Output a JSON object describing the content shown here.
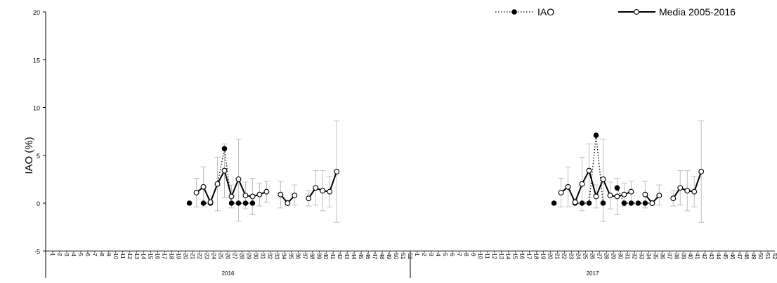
{
  "chart_data": {
    "type": "line",
    "ylabel": "IAO (%)",
    "xlabel": "",
    "ylim": [
      -5,
      20
    ],
    "yticks": [
      -5,
      0,
      5,
      10,
      15,
      20
    ],
    "grid": false,
    "legend_position": "top-right",
    "week_labels": [
      "1",
      "2",
      "3",
      "4",
      "5",
      "6",
      "7",
      "8",
      "9",
      "10",
      "11",
      "12",
      "13",
      "14",
      "15",
      "16",
      "17",
      "18",
      "19",
      "20",
      "21",
      "22",
      "23",
      "24",
      "25",
      "26",
      "27",
      "28",
      "29",
      "30",
      "31",
      "32",
      "33",
      "34",
      "35",
      "36",
      "37",
      "38",
      "39",
      "40",
      "41",
      "42",
      "43",
      "44",
      "45",
      "46",
      "47",
      "48",
      "49",
      "50",
      "51",
      "52"
    ],
    "years": [
      {
        "label": "2016",
        "weeks": 52,
        "iao": [
          {
            "w": 21,
            "v": 0
          },
          {
            "w": 23,
            "v": 0
          },
          {
            "w": 24,
            "v": 0
          },
          {
            "w": 25,
            "v": 2
          },
          {
            "w": 26,
            "v": 5.7
          },
          {
            "w": 27,
            "v": 0
          },
          {
            "w": 28,
            "v": 0
          },
          {
            "w": 29,
            "v": 0
          },
          {
            "w": 30,
            "v": 0
          }
        ],
        "media_segments": [
          [
            {
              "w": 22,
              "v": 1.1,
              "lo": -0.4,
              "hi": 2.6
            },
            {
              "w": 23,
              "v": 1.7,
              "lo": -0.4,
              "hi": 3.8
            },
            {
              "w": 24,
              "v": 0.1,
              "lo": -0.1,
              "hi": 0.3
            },
            {
              "w": 25,
              "v": 2.0,
              "lo": -0.8,
              "hi": 4.8
            },
            {
              "w": 26,
              "v": 3.4,
              "lo": 0.6,
              "hi": 6.2
            },
            {
              "w": 27,
              "v": 0.7,
              "lo": -0.5,
              "hi": 1.9
            },
            {
              "w": 28,
              "v": 2.5,
              "lo": -1.9,
              "hi": 6.7
            },
            {
              "w": 29,
              "v": 0.8,
              "lo": -0.6,
              "hi": 2.2
            },
            {
              "w": 30,
              "v": 0.7,
              "lo": -1.2,
              "hi": 2.6
            },
            {
              "w": 31,
              "v": 0.9,
              "lo": -0.3,
              "hi": 2.1
            },
            {
              "w": 32,
              "v": 1.2,
              "lo": 0.1,
              "hi": 2.3
            }
          ],
          [
            {
              "w": 34,
              "v": 0.9,
              "lo": -0.5,
              "hi": 2.3
            },
            {
              "w": 35,
              "v": 0.0,
              "lo": -0.2,
              "hi": 0.3
            },
            {
              "w": 36,
              "v": 0.8,
              "lo": -0.2,
              "hi": 1.9
            }
          ],
          [
            {
              "w": 38,
              "v": 0.5,
              "lo": -0.3,
              "hi": 1.3
            },
            {
              "w": 39,
              "v": 1.6,
              "lo": -0.2,
              "hi": 3.4
            },
            {
              "w": 40,
              "v": 1.3,
              "lo": -0.8,
              "hi": 3.4
            },
            {
              "w": 41,
              "v": 1.2,
              "lo": -0.4,
              "hi": 2.8
            },
            {
              "w": 42,
              "v": 3.3,
              "lo": -2.0,
              "hi": 8.6
            }
          ]
        ]
      },
      {
        "label": "2017",
        "weeks": 52,
        "iao": [
          {
            "w": 21,
            "v": 0
          },
          {
            "w": 24,
            "v": 0
          },
          {
            "w": 25,
            "v": 0
          },
          {
            "w": 26,
            "v": 0
          },
          {
            "w": 27,
            "v": 7.1
          },
          {
            "w": 28,
            "v": 0
          },
          {
            "w": 30,
            "v": 1.6
          },
          {
            "w": 31,
            "v": 0
          },
          {
            "w": 32,
            "v": 0
          },
          {
            "w": 33,
            "v": 0
          },
          {
            "w": 34,
            "v": 0
          },
          {
            "w": 35,
            "v": 0
          }
        ],
        "media_segments": [
          [
            {
              "w": 22,
              "v": 1.1,
              "lo": -0.4,
              "hi": 2.6
            },
            {
              "w": 23,
              "v": 1.7,
              "lo": -0.4,
              "hi": 3.8
            },
            {
              "w": 24,
              "v": 0.1,
              "lo": -0.1,
              "hi": 0.3
            },
            {
              "w": 25,
              "v": 2.0,
              "lo": -0.8,
              "hi": 4.8
            },
            {
              "w": 26,
              "v": 3.4,
              "lo": 0.6,
              "hi": 6.2
            },
            {
              "w": 27,
              "v": 0.7,
              "lo": -0.5,
              "hi": 1.9
            },
            {
              "w": 28,
              "v": 2.5,
              "lo": -1.9,
              "hi": 6.7
            },
            {
              "w": 29,
              "v": 0.8,
              "lo": -0.6,
              "hi": 2.2
            },
            {
              "w": 30,
              "v": 0.7,
              "lo": -1.2,
              "hi": 2.6
            },
            {
              "w": 31,
              "v": 0.9,
              "lo": -0.3,
              "hi": 2.1
            },
            {
              "w": 32,
              "v": 1.2,
              "lo": 0.1,
              "hi": 2.3
            }
          ],
          [
            {
              "w": 34,
              "v": 0.9,
              "lo": -0.5,
              "hi": 2.3
            },
            {
              "w": 35,
              "v": 0.0,
              "lo": -0.2,
              "hi": 0.3
            },
            {
              "w": 36,
              "v": 0.8,
              "lo": -0.2,
              "hi": 1.9
            }
          ],
          [
            {
              "w": 38,
              "v": 0.5,
              "lo": -0.3,
              "hi": 1.3
            },
            {
              "w": 39,
              "v": 1.6,
              "lo": -0.2,
              "hi": 3.4
            },
            {
              "w": 40,
              "v": 1.3,
              "lo": -0.8,
              "hi": 3.4
            },
            {
              "w": 41,
              "v": 1.2,
              "lo": -0.4,
              "hi": 2.8
            },
            {
              "w": 42,
              "v": 3.3,
              "lo": -2.0,
              "hi": 8.6
            }
          ]
        ]
      }
    ],
    "series": [
      {
        "name": "IAO",
        "style": "dotted",
        "marker": "filled-circle",
        "color": "#000000"
      },
      {
        "name": "Media 2005-2016",
        "style": "solid",
        "marker": "open-circle",
        "color": "#000000",
        "error_bar_color": "#c0c0c0"
      }
    ]
  }
}
